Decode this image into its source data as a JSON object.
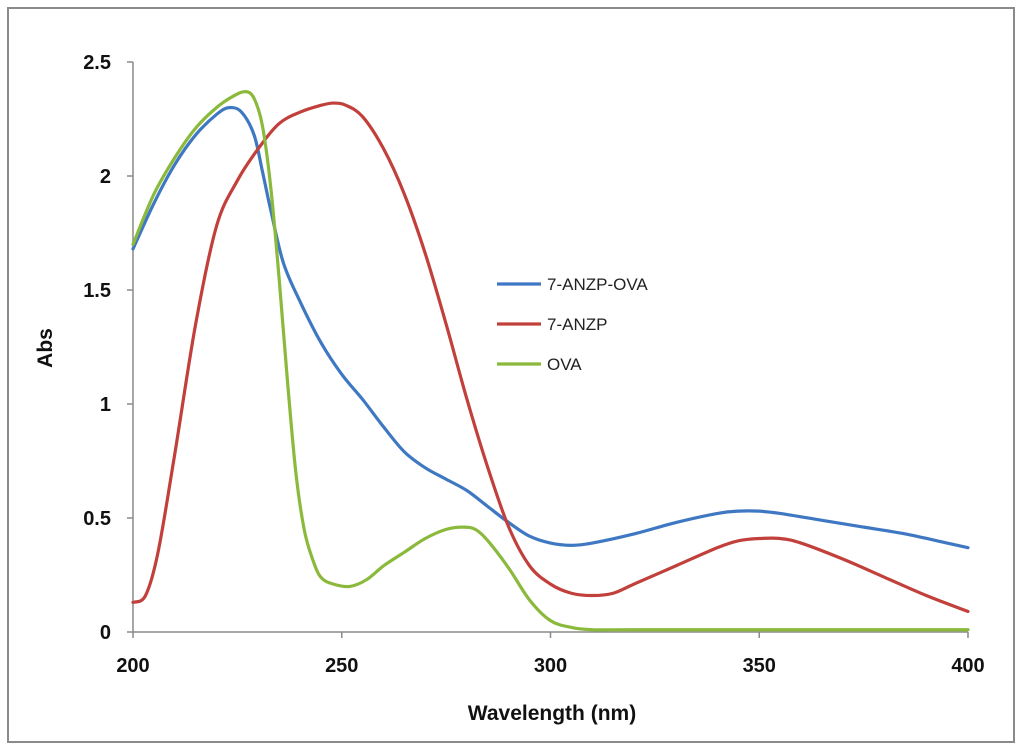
{
  "chart_data": {
    "type": "line",
    "xlabel": "Wavelength (nm)",
    "ylabel": "Abs",
    "xlim": [
      200,
      400
    ],
    "ylim": [
      0,
      2.5
    ],
    "x_ticks": [
      "200",
      "250",
      "300",
      "350",
      "400"
    ],
    "y_ticks": [
      "0",
      "0.5",
      "1",
      "1.5",
      "2",
      "2.5"
    ],
    "x_tick_values": [
      200,
      250,
      300,
      350,
      400
    ],
    "y_tick_values": [
      0,
      0.5,
      1,
      1.5,
      2,
      2.5
    ],
    "grid": false,
    "legend_position": "center-right",
    "series": [
      {
        "name": "7-ANZP-OVA",
        "color": "#3f78c2",
        "points": [
          [
            200,
            1.68
          ],
          [
            205,
            1.88
          ],
          [
            210,
            2.05
          ],
          [
            215,
            2.18
          ],
          [
            220,
            2.27
          ],
          [
            223,
            2.3
          ],
          [
            226,
            2.28
          ],
          [
            229,
            2.18
          ],
          [
            231,
            2.02
          ],
          [
            233,
            1.85
          ],
          [
            236,
            1.62
          ],
          [
            240,
            1.45
          ],
          [
            245,
            1.27
          ],
          [
            250,
            1.13
          ],
          [
            255,
            1.02
          ],
          [
            260,
            0.9
          ],
          [
            265,
            0.79
          ],
          [
            270,
            0.72
          ],
          [
            275,
            0.67
          ],
          [
            280,
            0.62
          ],
          [
            285,
            0.55
          ],
          [
            290,
            0.48
          ],
          [
            295,
            0.42
          ],
          [
            300,
            0.39
          ],
          [
            305,
            0.38
          ],
          [
            310,
            0.39
          ],
          [
            320,
            0.43
          ],
          [
            330,
            0.48
          ],
          [
            340,
            0.52
          ],
          [
            345,
            0.53
          ],
          [
            350,
            0.53
          ],
          [
            355,
            0.52
          ],
          [
            365,
            0.49
          ],
          [
            375,
            0.46
          ],
          [
            385,
            0.43
          ],
          [
            395,
            0.39
          ],
          [
            400,
            0.37
          ]
        ]
      },
      {
        "name": "7-ANZP",
        "color": "#c2403b",
        "points": [
          [
            200,
            0.13
          ],
          [
            203,
            0.16
          ],
          [
            206,
            0.35
          ],
          [
            210,
            0.78
          ],
          [
            215,
            1.35
          ],
          [
            220,
            1.78
          ],
          [
            225,
            1.98
          ],
          [
            230,
            2.12
          ],
          [
            235,
            2.23
          ],
          [
            240,
            2.28
          ],
          [
            245,
            2.31
          ],
          [
            248,
            2.32
          ],
          [
            251,
            2.31
          ],
          [
            255,
            2.26
          ],
          [
            260,
            2.12
          ],
          [
            265,
            1.92
          ],
          [
            270,
            1.66
          ],
          [
            275,
            1.35
          ],
          [
            280,
            1.02
          ],
          [
            285,
            0.72
          ],
          [
            290,
            0.46
          ],
          [
            295,
            0.29
          ],
          [
            300,
            0.21
          ],
          [
            305,
            0.17
          ],
          [
            310,
            0.16
          ],
          [
            315,
            0.17
          ],
          [
            320,
            0.21
          ],
          [
            330,
            0.29
          ],
          [
            340,
            0.37
          ],
          [
            345,
            0.4
          ],
          [
            350,
            0.41
          ],
          [
            355,
            0.41
          ],
          [
            360,
            0.39
          ],
          [
            370,
            0.32
          ],
          [
            380,
            0.24
          ],
          [
            390,
            0.16
          ],
          [
            400,
            0.09
          ]
        ]
      },
      {
        "name": "OVA",
        "color": "#8bb93c",
        "points": [
          [
            200,
            1.7
          ],
          [
            205,
            1.92
          ],
          [
            210,
            2.08
          ],
          [
            215,
            2.21
          ],
          [
            220,
            2.3
          ],
          [
            224,
            2.35
          ],
          [
            227,
            2.37
          ],
          [
            229,
            2.34
          ],
          [
            231,
            2.22
          ],
          [
            233,
            1.95
          ],
          [
            235,
            1.55
          ],
          [
            237,
            1.1
          ],
          [
            239,
            0.7
          ],
          [
            241,
            0.45
          ],
          [
            243,
            0.32
          ],
          [
            245,
            0.24
          ],
          [
            248,
            0.21
          ],
          [
            252,
            0.2
          ],
          [
            256,
            0.23
          ],
          [
            260,
            0.29
          ],
          [
            265,
            0.35
          ],
          [
            270,
            0.41
          ],
          [
            275,
            0.45
          ],
          [
            279,
            0.46
          ],
          [
            282,
            0.45
          ],
          [
            285,
            0.4
          ],
          [
            290,
            0.28
          ],
          [
            295,
            0.14
          ],
          [
            300,
            0.05
          ],
          [
            305,
            0.02
          ],
          [
            310,
            0.01
          ],
          [
            320,
            0.01
          ],
          [
            350,
            0.01
          ],
          [
            400,
            0.01
          ]
        ]
      }
    ]
  }
}
